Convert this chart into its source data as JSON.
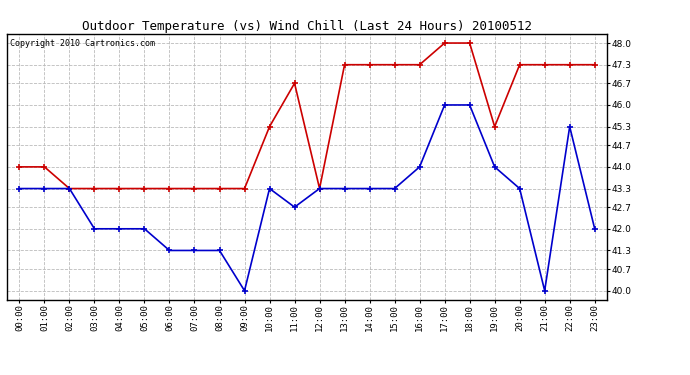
{
  "title": "Outdoor Temperature (vs) Wind Chill (Last 24 Hours) 20100512",
  "copyright_text": "Copyright 2010 Cartronics.com",
  "x_labels": [
    "00:00",
    "01:00",
    "02:00",
    "03:00",
    "04:00",
    "05:00",
    "06:00",
    "07:00",
    "08:00",
    "09:00",
    "10:00",
    "11:00",
    "12:00",
    "13:00",
    "14:00",
    "15:00",
    "16:00",
    "17:00",
    "18:00",
    "19:00",
    "20:00",
    "21:00",
    "22:00",
    "23:00"
  ],
  "temp_data": [
    44.0,
    44.0,
    43.3,
    43.3,
    43.3,
    43.3,
    43.3,
    43.3,
    43.3,
    43.3,
    45.3,
    46.7,
    43.3,
    47.3,
    47.3,
    47.3,
    47.3,
    48.0,
    48.0,
    45.3,
    47.3,
    47.3,
    47.3,
    47.3
  ],
  "windchill_data": [
    43.3,
    43.3,
    43.3,
    42.0,
    42.0,
    42.0,
    41.3,
    41.3,
    41.3,
    40.0,
    43.3,
    42.7,
    43.3,
    43.3,
    43.3,
    43.3,
    44.0,
    46.0,
    46.0,
    44.0,
    43.3,
    40.0,
    45.3,
    42.0
  ],
  "temp_color": "#cc0000",
  "windchill_color": "#0000cc",
  "ylim_min": 39.7,
  "ylim_max": 48.3,
  "yticks": [
    40.0,
    40.7,
    41.3,
    42.0,
    42.7,
    43.3,
    44.0,
    44.7,
    45.3,
    46.0,
    46.7,
    47.3,
    48.0
  ],
  "background_color": "#ffffff",
  "plot_bg_color": "#ffffff",
  "grid_color": "#bbbbbb",
  "title_fontsize": 9,
  "copyright_fontsize": 6,
  "tick_fontsize": 6.5,
  "marker_size": 4,
  "line_width": 1.2
}
